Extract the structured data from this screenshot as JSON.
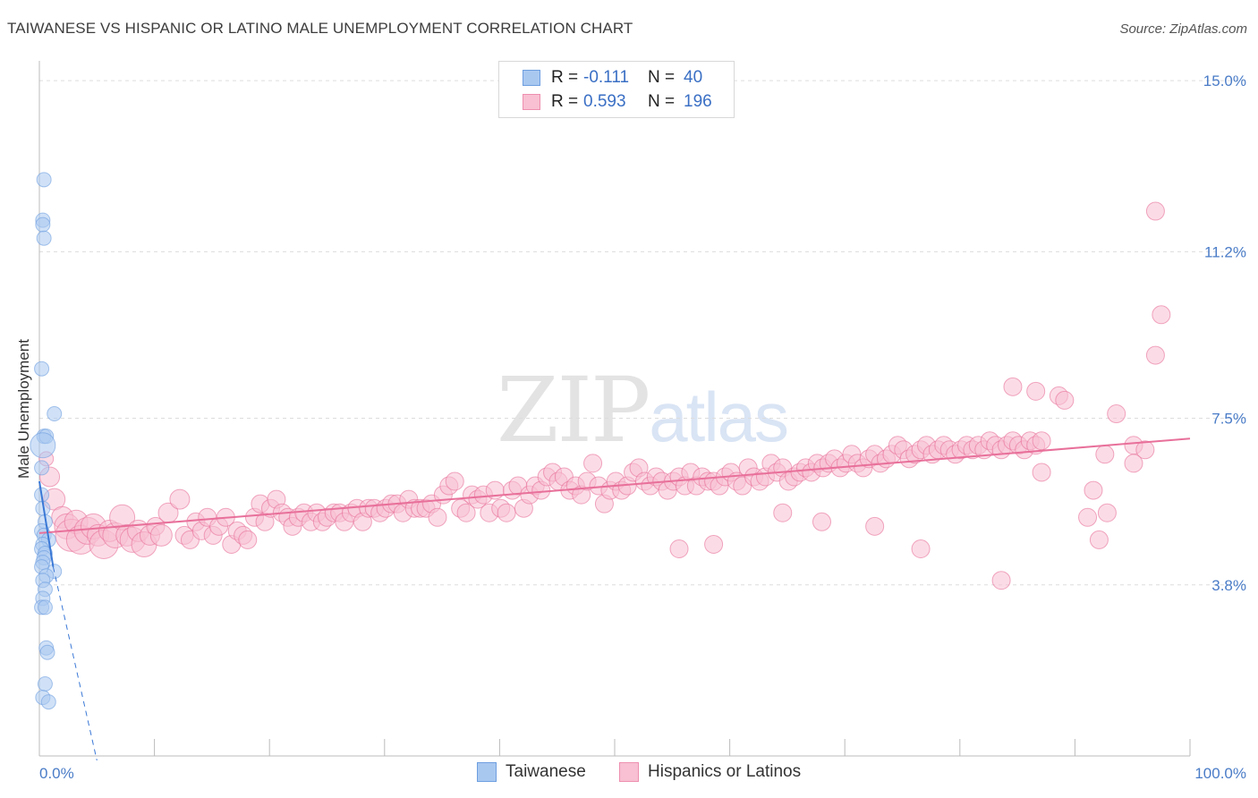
{
  "title": "TAIWANESE VS HISPANIC OR LATINO MALE UNEMPLOYMENT CORRELATION CHART",
  "source": "Source: ZipAtlas.com",
  "watermark": {
    "zip": "ZIP",
    "atlas": "atlas"
  },
  "legend": {
    "r_label": "R =",
    "n_label": "N =",
    "rows": [
      {
        "r": "-0.111",
        "n": "40",
        "color": "#a9c8f0",
        "border": "#6e9fe0"
      },
      {
        "r": "0.593",
        "n": "196",
        "color": "#f8c0d2",
        "border": "#ee8fb0"
      }
    ]
  },
  "bottom_legend": [
    {
      "label": "Taiwanese",
      "color": "#a9c8f0",
      "border": "#6e9fe0"
    },
    {
      "label": "Hispanics or Latinos",
      "color": "#f8c0d2",
      "border": "#ee8fb0"
    }
  ],
  "chart_data": {
    "type": "scatter",
    "title": "TAIWANESE VS HISPANIC OR LATINO MALE UNEMPLOYMENT CORRELATION CHART",
    "xlabel": "",
    "ylabel": "Male Unemployment",
    "xlim": [
      0,
      100
    ],
    "ylim": [
      0,
      15.3
    ],
    "x_tick_labels": [
      "0.0%",
      "100.0%"
    ],
    "y_ticks": [
      {
        "value": 3.8,
        "label": "3.8%"
      },
      {
        "value": 7.5,
        "label": "7.5%"
      },
      {
        "value": 11.2,
        "label": "11.2%"
      },
      {
        "value": 15.0,
        "label": "15.0%"
      }
    ],
    "series": [
      {
        "name": "Taiwanese",
        "color": "#6e9fe0",
        "fill": "#a9c8f0",
        "trend": {
          "x0": 0,
          "y0": 6.1,
          "x1": 1.2,
          "y1": 4.2,
          "dash_to_x": 5.0,
          "dash_to_y": -0.1
        },
        "points": [
          [
            0.4,
            12.8,
            8
          ],
          [
            0.3,
            11.9,
            8
          ],
          [
            0.3,
            11.8,
            8
          ],
          [
            0.4,
            11.5,
            8
          ],
          [
            0.2,
            8.6,
            8
          ],
          [
            1.3,
            7.6,
            8
          ],
          [
            0.4,
            7.1,
            8
          ],
          [
            0.6,
            7.1,
            8
          ],
          [
            0.3,
            6.9,
            14
          ],
          [
            0.2,
            6.4,
            8
          ],
          [
            0.2,
            5.8,
            8
          ],
          [
            0.3,
            5.5,
            8
          ],
          [
            0.5,
            5.2,
            8
          ],
          [
            0.2,
            5.0,
            8
          ],
          [
            0.4,
            4.9,
            8
          ],
          [
            0.8,
            4.8,
            8
          ],
          [
            0.3,
            4.7,
            8
          ],
          [
            0.2,
            4.6,
            8
          ],
          [
            0.5,
            4.5,
            8
          ],
          [
            0.4,
            4.4,
            8
          ],
          [
            0.3,
            4.3,
            8
          ],
          [
            0.2,
            4.2,
            8
          ],
          [
            1.3,
            4.1,
            8
          ],
          [
            0.6,
            4.0,
            8
          ],
          [
            0.3,
            3.9,
            8
          ],
          [
            0.5,
            3.7,
            8
          ],
          [
            0.3,
            3.5,
            8
          ],
          [
            0.2,
            3.3,
            8
          ],
          [
            0.5,
            3.3,
            8
          ],
          [
            0.6,
            2.4,
            8
          ],
          [
            0.7,
            2.3,
            8
          ],
          [
            0.5,
            1.6,
            8
          ],
          [
            0.3,
            1.3,
            8
          ],
          [
            0.8,
            1.2,
            8
          ]
        ]
      },
      {
        "name": "Hispanics or Latinos",
        "color": "#e8709a",
        "fill": "#f8c0d2",
        "trend": {
          "x0": 0,
          "y0": 4.95,
          "x1": 100,
          "y1": 7.05
        },
        "points": [
          [
            0.6,
            6.6,
            8
          ],
          [
            0.9,
            6.2,
            11
          ],
          [
            1.3,
            5.7,
            12
          ],
          [
            2.0,
            5.3,
            12
          ],
          [
            2.4,
            5.1,
            14
          ],
          [
            2.8,
            4.9,
            18
          ],
          [
            3.2,
            5.2,
            13
          ],
          [
            3.6,
            4.8,
            16
          ],
          [
            4.2,
            5.0,
            15
          ],
          [
            4.7,
            5.1,
            14
          ],
          [
            5.1,
            4.9,
            12
          ],
          [
            5.6,
            4.7,
            16
          ],
          [
            6.1,
            5.0,
            12
          ],
          [
            6.6,
            4.9,
            14
          ],
          [
            7.2,
            5.3,
            14
          ],
          [
            7.6,
            4.9,
            12
          ],
          [
            8.1,
            4.8,
            14
          ],
          [
            8.6,
            5.0,
            12
          ],
          [
            9.1,
            4.7,
            14
          ],
          [
            9.6,
            4.9,
            11
          ],
          [
            10.1,
            5.1,
            10
          ],
          [
            10.6,
            4.9,
            12
          ],
          [
            11.2,
            5.4,
            11
          ],
          [
            12.2,
            5.7,
            11
          ],
          [
            12.6,
            4.9,
            10
          ],
          [
            13.1,
            4.8,
            10
          ],
          [
            13.6,
            5.2,
            10
          ],
          [
            14.1,
            5.0,
            10
          ],
          [
            14.6,
            5.3,
            10
          ],
          [
            15.1,
            4.9,
            10
          ],
          [
            15.6,
            5.1,
            10
          ],
          [
            16.2,
            5.3,
            10
          ],
          [
            16.7,
            4.7,
            10
          ],
          [
            17.2,
            5.0,
            10
          ],
          [
            17.7,
            4.9,
            10
          ],
          [
            18.1,
            4.8,
            10
          ],
          [
            18.7,
            5.3,
            10
          ],
          [
            19.2,
            5.6,
            10
          ],
          [
            19.6,
            5.2,
            10
          ],
          [
            20.1,
            5.5,
            10
          ],
          [
            20.6,
            5.7,
            10
          ],
          [
            21.1,
            5.4,
            10
          ],
          [
            21.6,
            5.3,
            10
          ],
          [
            22.0,
            5.1,
            10
          ],
          [
            22.5,
            5.3,
            10
          ],
          [
            23.0,
            5.4,
            10
          ],
          [
            23.6,
            5.2,
            10
          ],
          [
            24.1,
            5.4,
            10
          ],
          [
            24.6,
            5.2,
            10
          ],
          [
            25.0,
            5.3,
            10
          ],
          [
            25.6,
            5.4,
            10
          ],
          [
            26.1,
            5.4,
            10
          ],
          [
            26.5,
            5.2,
            10
          ],
          [
            27.1,
            5.4,
            10
          ],
          [
            27.6,
            5.5,
            10
          ],
          [
            28.1,
            5.2,
            10
          ],
          [
            28.6,
            5.5,
            10
          ],
          [
            29.1,
            5.5,
            10
          ],
          [
            29.6,
            5.4,
            10
          ],
          [
            30.1,
            5.5,
            10
          ],
          [
            30.6,
            5.6,
            10
          ],
          [
            31.1,
            5.6,
            10
          ],
          [
            31.6,
            5.4,
            10
          ],
          [
            32.1,
            5.7,
            10
          ],
          [
            32.6,
            5.5,
            10
          ],
          [
            33.1,
            5.5,
            10
          ],
          [
            33.6,
            5.5,
            10
          ],
          [
            34.1,
            5.6,
            10
          ],
          [
            34.6,
            5.3,
            10
          ],
          [
            35.1,
            5.8,
            10
          ],
          [
            35.6,
            6.0,
            10
          ],
          [
            36.1,
            6.1,
            10
          ],
          [
            36.6,
            5.5,
            10
          ],
          [
            37.1,
            5.4,
            10
          ],
          [
            37.6,
            5.8,
            10
          ],
          [
            38.1,
            5.7,
            10
          ],
          [
            38.6,
            5.8,
            10
          ],
          [
            39.1,
            5.4,
            10
          ],
          [
            39.6,
            5.9,
            10
          ],
          [
            40.1,
            5.5,
            10
          ],
          [
            40.6,
            5.4,
            10
          ],
          [
            41.1,
            5.9,
            10
          ],
          [
            41.6,
            6.0,
            10
          ],
          [
            42.1,
            5.5,
            10
          ],
          [
            42.6,
            5.8,
            10
          ],
          [
            43.1,
            6.0,
            10
          ],
          [
            43.6,
            5.9,
            10
          ],
          [
            44.1,
            6.2,
            10
          ],
          [
            44.6,
            6.3,
            10
          ],
          [
            45.1,
            6.1,
            10
          ],
          [
            45.6,
            6.2,
            10
          ],
          [
            46.1,
            5.9,
            10
          ],
          [
            46.6,
            6.0,
            10
          ],
          [
            47.1,
            5.8,
            10
          ],
          [
            47.6,
            6.1,
            10
          ],
          [
            48.1,
            6.5,
            10
          ],
          [
            48.6,
            6.0,
            10
          ],
          [
            49.1,
            5.6,
            10
          ],
          [
            49.6,
            5.9,
            10
          ],
          [
            50.1,
            6.1,
            10
          ],
          [
            50.6,
            5.9,
            10
          ],
          [
            51.1,
            6.0,
            10
          ],
          [
            51.6,
            6.3,
            10
          ],
          [
            52.1,
            6.4,
            10
          ],
          [
            52.6,
            6.1,
            10
          ],
          [
            53.1,
            6.0,
            10
          ],
          [
            53.6,
            6.2,
            10
          ],
          [
            54.1,
            6.1,
            10
          ],
          [
            54.6,
            5.9,
            10
          ],
          [
            55.1,
            6.1,
            10
          ],
          [
            55.6,
            6.2,
            10
          ],
          [
            56.1,
            6.0,
            10
          ],
          [
            56.6,
            6.3,
            10
          ],
          [
            57.1,
            6.0,
            10
          ],
          [
            57.6,
            6.2,
            10
          ],
          [
            58.1,
            6.1,
            10
          ],
          [
            58.6,
            6.1,
            10
          ],
          [
            59.1,
            6.0,
            10
          ],
          [
            59.6,
            6.2,
            10
          ],
          [
            60.1,
            6.3,
            10
          ],
          [
            60.6,
            6.1,
            10
          ],
          [
            61.1,
            6.0,
            10
          ],
          [
            61.6,
            6.4,
            10
          ],
          [
            62.1,
            6.2,
            10
          ],
          [
            62.6,
            6.1,
            10
          ],
          [
            63.1,
            6.2,
            10
          ],
          [
            63.6,
            6.5,
            10
          ],
          [
            64.1,
            6.3,
            10
          ],
          [
            64.6,
            6.4,
            10
          ],
          [
            65.1,
            6.1,
            10
          ],
          [
            65.6,
            6.2,
            10
          ],
          [
            66.1,
            6.3,
            10
          ],
          [
            66.6,
            6.4,
            10
          ],
          [
            67.1,
            6.3,
            10
          ],
          [
            67.6,
            6.5,
            10
          ],
          [
            68.1,
            6.4,
            10
          ],
          [
            68.6,
            6.5,
            10
          ],
          [
            69.1,
            6.6,
            10
          ],
          [
            69.6,
            6.4,
            10
          ],
          [
            70.1,
            6.5,
            10
          ],
          [
            70.6,
            6.7,
            10
          ],
          [
            71.1,
            6.5,
            10
          ],
          [
            71.6,
            6.4,
            10
          ],
          [
            72.1,
            6.6,
            10
          ],
          [
            72.6,
            6.7,
            10
          ],
          [
            73.1,
            6.5,
            10
          ],
          [
            73.6,
            6.6,
            10
          ],
          [
            74.1,
            6.7,
            10
          ],
          [
            74.6,
            6.9,
            10
          ],
          [
            75.1,
            6.8,
            10
          ],
          [
            75.6,
            6.6,
            10
          ],
          [
            76.1,
            6.7,
            10
          ],
          [
            76.6,
            6.8,
            10
          ],
          [
            77.1,
            6.9,
            10
          ],
          [
            77.6,
            6.7,
            10
          ],
          [
            78.1,
            6.8,
            10
          ],
          [
            78.6,
            6.9,
            10
          ],
          [
            79.1,
            6.8,
            10
          ],
          [
            79.6,
            6.7,
            10
          ],
          [
            80.1,
            6.8,
            10
          ],
          [
            80.6,
            6.9,
            10
          ],
          [
            81.1,
            6.8,
            10
          ],
          [
            81.6,
            6.9,
            10
          ],
          [
            82.1,
            6.8,
            10
          ],
          [
            82.6,
            7.0,
            10
          ],
          [
            83.1,
            6.9,
            10
          ],
          [
            83.6,
            6.8,
            10
          ],
          [
            84.1,
            6.9,
            10
          ],
          [
            84.6,
            7.0,
            10
          ],
          [
            85.1,
            6.9,
            10
          ],
          [
            85.6,
            6.8,
            10
          ],
          [
            86.1,
            7.0,
            10
          ],
          [
            86.6,
            6.9,
            10
          ],
          [
            87.1,
            7.0,
            10
          ],
          [
            97.0,
            12.1,
            10
          ],
          [
            97.5,
            9.8,
            10
          ],
          [
            97.0,
            8.9,
            10
          ],
          [
            84.6,
            8.2,
            10
          ],
          [
            86.6,
            8.1,
            10
          ],
          [
            88.6,
            8.0,
            10
          ],
          [
            89.1,
            7.9,
            10
          ],
          [
            93.6,
            7.6,
            10
          ],
          [
            95.1,
            6.9,
            10
          ],
          [
            96.1,
            6.8,
            10
          ],
          [
            95.1,
            6.5,
            10
          ],
          [
            92.6,
            6.7,
            10
          ],
          [
            91.6,
            5.9,
            10
          ],
          [
            92.1,
            4.8,
            10
          ],
          [
            91.1,
            5.3,
            10
          ],
          [
            92.8,
            5.4,
            10
          ],
          [
            83.6,
            3.9,
            10
          ],
          [
            76.6,
            4.6,
            10
          ],
          [
            55.6,
            4.6,
            10
          ],
          [
            58.6,
            4.7,
            10
          ],
          [
            64.6,
            5.4,
            10
          ],
          [
            68.0,
            5.2,
            10
          ],
          [
            72.6,
            5.1,
            10
          ],
          [
            87.1,
            6.3,
            10
          ]
        ]
      }
    ]
  }
}
